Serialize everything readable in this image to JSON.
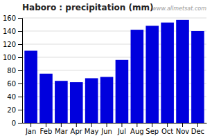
{
  "chart_data": {
    "type": "bar",
    "title": "Haboro : precipitation (mm)",
    "categories": [
      "Jan",
      "Feb",
      "Mar",
      "Apr",
      "May",
      "Jun",
      "Jul",
      "Aug",
      "Sep",
      "Oct",
      "Nov",
      "Dec"
    ],
    "values": [
      110,
      75,
      64,
      62,
      68,
      70,
      96,
      142,
      148,
      153,
      157,
      140
    ],
    "color": "#0000dd",
    "ylim": [
      0,
      160
    ],
    "yticks": [
      0,
      20,
      40,
      60,
      80,
      100,
      120,
      140,
      160
    ],
    "grid": true,
    "annotations": [
      "www.allmetsat.com"
    ]
  }
}
